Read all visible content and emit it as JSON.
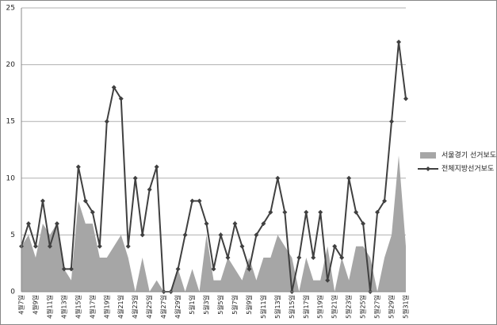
{
  "chart_data": {
    "type": "area-line",
    "categories": [
      "4월7일",
      null,
      "4월9일",
      null,
      "4월11일",
      null,
      "4월13일",
      null,
      "4월15일",
      null,
      "4월17일",
      null,
      "4월19일",
      null,
      "4월21일",
      null,
      "4월23일",
      null,
      "4월25일",
      null,
      "4월27일",
      null,
      "4월29일",
      null,
      "5월1일",
      null,
      "5월3일",
      null,
      "5월5일",
      null,
      "5월7일",
      null,
      "5월9일",
      null,
      "5월11일",
      null,
      "5월13일",
      null,
      "5월15일",
      null,
      "5월17일",
      null,
      "5월19일",
      null,
      "5월21일",
      null,
      "5월23일",
      null,
      "5월25일",
      null,
      "5월27일",
      null,
      "5월29일",
      null,
      "5월31일"
    ],
    "series": [
      {
        "name": "서울경기 선거보도",
        "kind": "area",
        "color": "#a6a6a6",
        "values": [
          4,
          5,
          3,
          6,
          5,
          6,
          2,
          1,
          8,
          6,
          6,
          3,
          3,
          4,
          5,
          3,
          0,
          3,
          0,
          1,
          0,
          0,
          2,
          0,
          2,
          0,
          5,
          1,
          1,
          3,
          2,
          1,
          3,
          1,
          3,
          3,
          5,
          4,
          3,
          0,
          3,
          1,
          1,
          4,
          0,
          3,
          1,
          4,
          4,
          3,
          0,
          3,
          5,
          12,
          4
        ]
      },
      {
        "name": "전체지방선거보도",
        "kind": "line",
        "color": "#404040",
        "values": [
          4,
          6,
          4,
          8,
          4,
          6,
          2,
          2,
          11,
          8,
          7,
          4,
          15,
          18,
          17,
          4,
          10,
          5,
          9,
          11,
          0,
          0,
          2,
          5,
          8,
          8,
          6,
          2,
          5,
          3,
          6,
          4,
          2,
          5,
          6,
          7,
          10,
          7,
          0,
          3,
          7,
          3,
          7,
          1,
          4,
          3,
          10,
          7,
          6,
          0,
          7,
          8,
          15,
          22,
          17
        ]
      }
    ],
    "ylim": [
      0,
      25
    ],
    "yticks": [
      0,
      5,
      10,
      15,
      20,
      25
    ],
    "grid": true,
    "legend": "right"
  }
}
